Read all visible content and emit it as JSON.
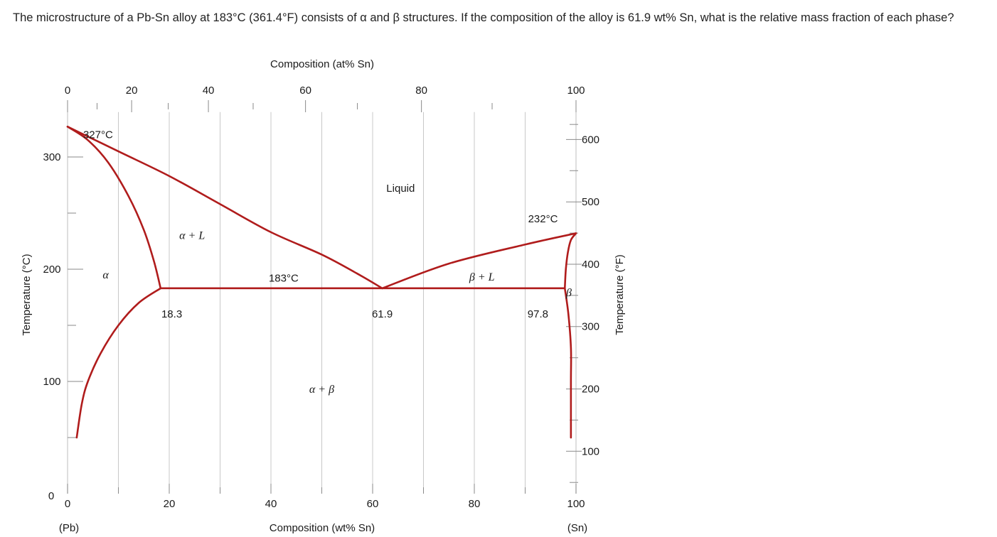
{
  "question": "The microstructure of a Pb-Sn alloy at 183°C (361.4°F) consists of α and β structures. If the composition of the alloy is 61.9 wt% Sn, what is the relative mass fraction of each phase?",
  "chart_data": {
    "type": "phase-diagram",
    "title": "",
    "xlabel": "Composition (wt% Sn)",
    "x2label": "Composition (at% Sn)",
    "ylabel": "Temperature (°C)",
    "y2label": "Temperature (°F)",
    "xlim": [
      0,
      100
    ],
    "ylim": [
      0,
      340
    ],
    "x_ticks": [
      "0",
      "20",
      "40",
      "60",
      "80",
      "100"
    ],
    "x_end_labels": [
      "(Pb)",
      "(Sn)"
    ],
    "at_ticks": [
      {
        "label": "0",
        "wt": 0
      },
      {
        "label": "20",
        "wt": 12.6
      },
      {
        "label": "40",
        "wt": 27.7
      },
      {
        "label": "60",
        "wt": 46.8
      },
      {
        "label": "80",
        "wt": 69.6
      },
      {
        "label": "100",
        "wt": 100
      }
    ],
    "y_ticks": [
      "0",
      "100",
      "200",
      "300"
    ],
    "f_ticks": [
      {
        "label": "100",
        "c": 37.8
      },
      {
        "label": "200",
        "c": 93.3
      },
      {
        "label": "300",
        "c": 148.9
      },
      {
        "label": "400",
        "c": 204.4
      },
      {
        "label": "500",
        "c": 260
      },
      {
        "label": "600",
        "c": 315.6
      }
    ],
    "grid": true,
    "series": [
      {
        "name": "",
        "role": "liquidus-left",
        "points": [
          [
            0,
            327
          ],
          [
            10,
            305
          ],
          [
            20,
            283
          ],
          [
            30,
            258
          ],
          [
            40,
            233
          ],
          [
            50,
            213
          ],
          [
            57,
            196
          ],
          [
            61.9,
            183
          ]
        ]
      },
      {
        "name": "",
        "role": "solidus-left",
        "points": [
          [
            0,
            327
          ],
          [
            4,
            315
          ],
          [
            8,
            295
          ],
          [
            12,
            265
          ],
          [
            15,
            235
          ],
          [
            17,
            207
          ],
          [
            18.3,
            183
          ]
        ]
      },
      {
        "name": "",
        "role": "solvus-left",
        "points": [
          [
            18.3,
            183
          ],
          [
            14,
            170
          ],
          [
            10,
            150
          ],
          [
            6.5,
            125
          ],
          [
            4,
            100
          ],
          [
            2.8,
            80
          ],
          [
            1.8,
            50
          ]
        ]
      },
      {
        "name": "",
        "role": "liquidus-right",
        "points": [
          [
            61.9,
            183
          ],
          [
            75,
            205
          ],
          [
            90,
            222
          ],
          [
            100,
            232
          ]
        ]
      },
      {
        "name": "",
        "role": "solidus-right",
        "points": [
          [
            100,
            232
          ],
          [
            99,
            226
          ],
          [
            98.4,
            215
          ],
          [
            98,
            200
          ],
          [
            97.8,
            183
          ]
        ]
      },
      {
        "name": "",
        "role": "solvus-right",
        "points": [
          [
            97.8,
            183
          ],
          [
            98.5,
            160
          ],
          [
            99,
            130
          ],
          [
            99,
            100
          ],
          [
            99,
            50
          ]
        ]
      },
      {
        "name": "",
        "role": "eutectic-isotherm",
        "points": [
          [
            18.3,
            183
          ],
          [
            97.8,
            183
          ]
        ]
      }
    ],
    "annotations": [
      {
        "text": "327°C",
        "x": 6,
        "y": 320,
        "style": "sans"
      },
      {
        "text": "232°C",
        "x": 93.5,
        "y": 245,
        "style": "sans"
      },
      {
        "text": "183°C",
        "x": 42.5,
        "y": 192,
        "style": "sans"
      },
      {
        "text": "18.3",
        "x": 20.5,
        "y": 160,
        "style": "sans"
      },
      {
        "text": "61.9",
        "x": 61.9,
        "y": 160,
        "style": "sans"
      },
      {
        "text": "97.8",
        "x": 92.5,
        "y": 160,
        "style": "sans"
      },
      {
        "text": "Liquid",
        "x": 65.5,
        "y": 272,
        "style": "sans"
      },
      {
        "text": "α + L",
        "x": 24.5,
        "y": 230,
        "style": "serif"
      },
      {
        "text": "β + L",
        "x": 81.5,
        "y": 193,
        "style": "serif"
      },
      {
        "text": "α + β",
        "x": 50,
        "y": 93,
        "style": "serif"
      },
      {
        "text": "α",
        "x": 7.5,
        "y": 195,
        "style": "serif"
      },
      {
        "text": "β",
        "x": 98.6,
        "y": 179,
        "style": "serif"
      }
    ],
    "colors": {
      "curve": "#b01c1c",
      "grid": "#c8c8c8",
      "tick": "#8a8a8a",
      "text": "#1a1a1a"
    }
  }
}
